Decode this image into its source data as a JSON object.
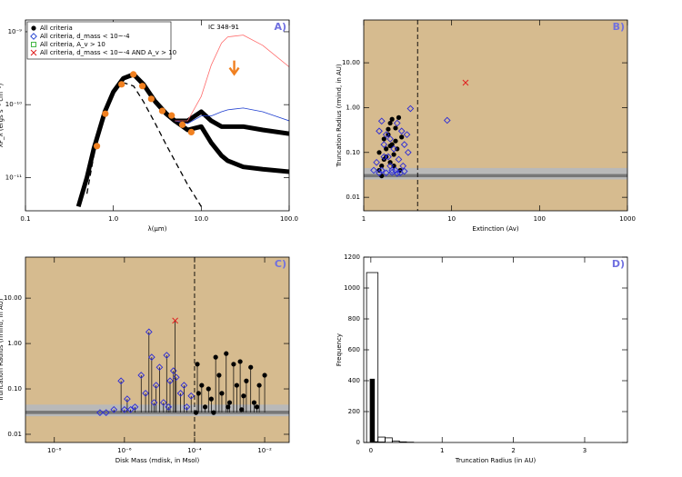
{
  "chart_data": [
    {
      "type": "line",
      "panel_label": "A)",
      "object_label": "IC 348-91",
      "xlabel": "λ(μm)",
      "ylabel": "λF_λ (ergs s⁻¹ cm⁻²)",
      "xlog": true,
      "ylog": true,
      "xlim": [
        0.1,
        100
      ],
      "ylim": [
        3.5e-12,
        1.45e-09
      ],
      "xticks": [
        0.1,
        {
          "value": 1,
          "label": "1.0"
        },
        {
          "value": 10,
          "label": "10.0"
        },
        {
          "value": 100,
          "label": "100.0"
        }
      ],
      "yticks": [
        {
          "value": 1e-11,
          "label": "10⁻¹¹"
        },
        {
          "value": 1e-10,
          "label": "10⁻¹⁰"
        },
        {
          "value": 1e-09,
          "label": "10⁻⁹"
        }
      ],
      "x": [
        0.4,
        0.5,
        0.6,
        0.8,
        1,
        1.3,
        1.7,
        2.2,
        3,
        4,
        5,
        7,
        10,
        13,
        17,
        20,
        30,
        50,
        100
      ],
      "series": [
        {
          "color": "#000000",
          "style": "thick",
          "values": [
            4e-12,
            1e-11,
            2.5e-11,
            8e-11,
            1.5e-10,
            2.3e-10,
            2.6e-10,
            1.9e-10,
            1.1e-10,
            7.5e-11,
            6e-11,
            4.5e-11,
            5e-11,
            3e-11,
            2e-11,
            1.7e-11,
            1.4e-11,
            1.3e-11,
            1.2e-11
          ]
        },
        {
          "color": "#000000",
          "style": "thick",
          "values": [
            null,
            null,
            null,
            null,
            null,
            null,
            null,
            null,
            1.1e-10,
            7.5e-11,
            6e-11,
            6e-11,
            8e-11,
            6e-11,
            5e-11,
            5e-11,
            5e-11,
            4.5e-11,
            4e-11
          ]
        },
        {
          "color": "#1f3fd0",
          "style": "thin",
          "values": [
            null,
            null,
            null,
            null,
            null,
            null,
            null,
            null,
            null,
            null,
            6e-11,
            5.5e-11,
            7e-11,
            7e-11,
            8e-11,
            8.5e-11,
            9e-11,
            8e-11,
            6e-11
          ]
        },
        {
          "color": "#ff6a6a",
          "style": "thin",
          "values": [
            null,
            null,
            null,
            null,
            null,
            null,
            null,
            null,
            null,
            null,
            6e-11,
            6e-11,
            1.3e-10,
            3.5e-10,
            7e-10,
            8.5e-10,
            9e-10,
            6.5e-10,
            3.3e-10
          ]
        },
        {
          "color": "#000000",
          "style": "dashed",
          "values": [
            null,
            6e-12,
            2e-11,
            8e-11,
            1.5e-10,
            2e-10,
            1.8e-10,
            1.1e-10,
            5.5e-11,
            2.8e-11,
            1.7e-11,
            8e-12,
            4e-12,
            null,
            null,
            null,
            null,
            null,
            null
          ]
        }
      ],
      "points": {
        "color": "#f08020",
        "x": [
          0.65,
          0.81,
          1.24,
          1.69,
          2.14,
          2.7,
          3.6,
          4.6,
          6.1,
          7.7
        ],
        "values": [
          2.7e-11,
          7.5e-11,
          1.9e-10,
          2.6e-10,
          1.8e-10,
          1.2e-10,
          8.2e-11,
          7.1e-11,
          5.3e-11,
          4.2e-11
        ]
      },
      "upper_limit": {
        "color": "#f08020",
        "x": 23.7,
        "value": 2.7e-10
      },
      "legend": {
        "position": "upper left",
        "entries": [
          {
            "label": "All criteria",
            "color": "#000000",
            "marker": "dot"
          },
          {
            "label": "All criteria, d_mass < 10~-4",
            "color": "#1f3fd0",
            "marker": "diamond"
          },
          {
            "label": "All criteria, A_v > 10",
            "color": "#30b030",
            "marker": "square"
          },
          {
            "label": "All criteria, d_mass < 10~-4 AND A_v > 10",
            "color": "#e02020",
            "marker": "x"
          }
        ]
      }
    },
    {
      "type": "scatter",
      "panel_label": "B)",
      "xlabel": "Extinction (Av)",
      "ylabel": "Truncation Radius (rmind, in AU)",
      "xlog": true,
      "ylog": true,
      "xlim": [
        1,
        1000
      ],
      "ylim": [
        0.005,
        90
      ],
      "background": "#d6bb8f",
      "xticks": [
        1,
        10,
        100,
        1000
      ],
      "yticks": [
        0.01,
        {
          "value": 0.1,
          "label": "0.10"
        },
        {
          "value": 1,
          "label": "1.00"
        },
        {
          "value": 10,
          "label": "10.00"
        }
      ],
      "bands": [
        {
          "range": [
            0.025,
            0.045
          ],
          "color": "#b9b9b9"
        },
        {
          "range": [
            0.028,
            0.033
          ],
          "color": "#777777"
        }
      ],
      "vline": 4.1,
      "stems": false,
      "series": [
        {
          "marker": "dot",
          "color": "#000000",
          "x": [
            1.5,
            1.6,
            1.7,
            1.8,
            1.9,
            2.0,
            2.1,
            2.2,
            2.3,
            2.5,
            1.7,
            2.0,
            2.4,
            1.6,
            1.9,
            2.2,
            2.6,
            1.8,
            2.1,
            2.3,
            1.5,
            2.7,
            2.0
          ],
          "values": [
            0.04,
            0.05,
            0.07,
            0.12,
            0.25,
            0.45,
            0.15,
            0.09,
            0.35,
            0.6,
            0.2,
            0.06,
            0.12,
            0.03,
            0.33,
            0.05,
            0.04,
            0.08,
            0.55,
            0.18,
            0.1,
            0.22,
            0.14
          ]
        },
        {
          "marker": "diamond",
          "color": "#2a2ad8",
          "x": [
            1.4,
            1.5,
            1.6,
            1.7,
            1.8,
            1.9,
            2.0,
            2.1,
            2.2,
            2.4,
            2.5,
            2.7,
            2.9,
            3.1,
            3.4,
            8.9,
            1.6,
            1.8,
            2.0,
            2.3,
            2.6,
            2.8,
            3.2,
            1.5,
            1.7,
            1.3,
            2.1,
            2.4,
            2.9
          ],
          "values": [
            0.06,
            0.3,
            0.5,
            0.15,
            0.25,
            0.08,
            0.2,
            0.04,
            0.12,
            0.45,
            0.07,
            0.3,
            0.15,
            0.25,
            0.95,
            0.52,
            0.04,
            0.035,
            0.05,
            0.04,
            0.035,
            0.05,
            0.1,
            0.035,
            0.08,
            0.04,
            0.036,
            0.034,
            0.038
          ]
        },
        {
          "marker": "x",
          "color": "#e02020",
          "x": [
            14.4
          ],
          "values": [
            3.6
          ]
        }
      ]
    },
    {
      "type": "scatter",
      "panel_label": "C)",
      "xlabel": "Disk Mass (mdisk, in Msol)",
      "ylabel": "Truncation Radius (rmind, in AU)",
      "xlog": true,
      "ylog": true,
      "xlim": [
        1.5e-09,
        0.05
      ],
      "ylim": [
        0.0066,
        80
      ],
      "background": "#d6bb8f",
      "xticks": [
        {
          "value": 1e-08,
          "label": "10⁻⁸"
        },
        {
          "value": 1e-06,
          "label": "10⁻⁶"
        },
        {
          "value": 0.0001,
          "label": "10⁻⁴"
        },
        {
          "value": 0.01,
          "label": "10⁻²"
        }
      ],
      "yticks": [
        0.01,
        {
          "value": 0.1,
          "label": "0.10"
        },
        {
          "value": 1,
          "label": "1.00"
        },
        {
          "value": 10,
          "label": "10.00"
        }
      ],
      "bands": [
        {
          "range": [
            0.025,
            0.045
          ],
          "color": "#b9b9b9"
        },
        {
          "range": [
            0.028,
            0.033
          ],
          "color": "#777777"
        }
      ],
      "vline": 0.0001,
      "stems": true,
      "series": [
        {
          "marker": "diamond",
          "color": "#2a2ad8",
          "x": [
            3e-07,
            5e-07,
            8e-07,
            1.2e-06,
            1.5e-06,
            2e-06,
            3e-06,
            4e-06,
            5e-06,
            6e-06,
            8e-06,
            1e-05,
            1.3e-05,
            1.6e-05,
            2e-05,
            2.5e-05,
            3e-05,
            4e-05,
            5e-05,
            6e-05,
            8e-05,
            2e-07,
            1e-06,
            7e-06,
            1.8e-05
          ],
          "values": [
            0.03,
            0.035,
            0.15,
            0.06,
            0.035,
            0.04,
            0.2,
            0.08,
            1.8,
            0.5,
            0.12,
            0.3,
            0.05,
            0.55,
            0.15,
            0.25,
            0.18,
            0.08,
            0.12,
            0.04,
            0.07,
            0.03,
            0.035,
            0.05,
            0.04
          ]
        },
        {
          "marker": "dot",
          "color": "#000000",
          "x": [
            0.00011,
            0.00013,
            0.00016,
            0.0002,
            0.00025,
            0.0003,
            0.0004,
            0.0005,
            0.0006,
            0.0008,
            0.001,
            0.0013,
            0.0016,
            0.002,
            0.0025,
            0.003,
            0.004,
            0.005,
            0.007,
            0.01,
            0.00012,
            0.00035,
            0.0009,
            0.0022,
            0.006
          ],
          "values": [
            0.03,
            0.08,
            0.12,
            0.04,
            0.1,
            0.06,
            0.5,
            0.2,
            0.08,
            0.6,
            0.05,
            0.35,
            0.12,
            0.4,
            0.07,
            0.15,
            0.3,
            0.05,
            0.12,
            0.2,
            0.35,
            0.03,
            0.04,
            0.035,
            0.04
          ]
        },
        {
          "marker": "x",
          "color": "#e02020",
          "x": [
            2.8e-05
          ],
          "values": [
            3.2
          ]
        }
      ]
    },
    {
      "type": "histogram",
      "panel_label": "D)",
      "xlabel": "Truncation Radius (in AU)",
      "ylabel": "Frequency",
      "xlim": [
        -0.1,
        3.6
      ],
      "ylim": [
        0,
        1200
      ],
      "xticks": [
        0,
        1,
        2,
        3
      ],
      "yticks": [
        0,
        200,
        400,
        600,
        800,
        1000,
        1200
      ],
      "series": [
        {
          "color": "#000000",
          "filled": false,
          "bins": [
            -0.06,
            0.1,
            0.2,
            0.3,
            0.4,
            0.5,
            0.6
          ],
          "counts": [
            1100,
            35,
            30,
            10,
            4,
            2
          ]
        },
        {
          "color": "#000000",
          "filled": true,
          "bins": [
            -0.01,
            0.05,
            0.1,
            0.2
          ],
          "counts": [
            410,
            5,
            3
          ]
        }
      ]
    }
  ]
}
